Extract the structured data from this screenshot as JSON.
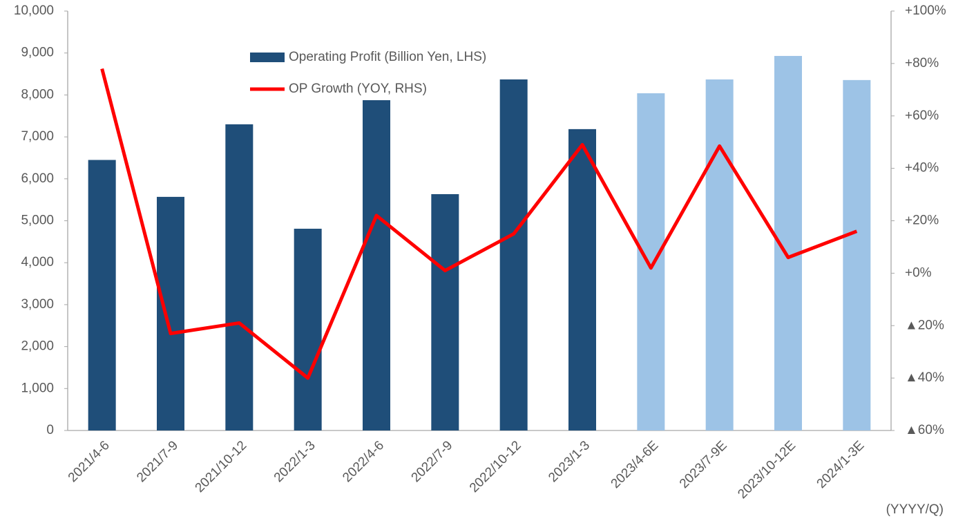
{
  "chart_data": {
    "type": "bar-line",
    "categories": [
      "2021/4-6",
      "2021/7-9",
      "2021/10-12",
      "2022/1-3",
      "2022/4-6",
      "2022/7-9",
      "2022/10-12",
      "2023/1-3",
      "2023/4-6E",
      "2023/7-9E",
      "2023/10-12E",
      "2024/1-3E"
    ],
    "series": [
      {
        "name": "Operating Profit (Billion Yen, LHS)",
        "type": "bar",
        "color": "#1f4e79",
        "colors": [
          "#1f4e79",
          "#1f4e79",
          "#1f4e79",
          "#1f4e79",
          "#1f4e79",
          "#1f4e79",
          "#1f4e79",
          "#1f4e79",
          "#9dc3e6",
          "#9dc3e6",
          "#9dc3e6",
          "#9dc3e6"
        ],
        "values": [
          6450,
          5570,
          7300,
          4810,
          7875,
          5635,
          8370,
          7185,
          8040,
          8370,
          8930,
          8355
        ]
      },
      {
        "name": "OP Growth (YOY, RHS)",
        "type": "line",
        "axis": "y2",
        "color": "#ff0000",
        "values": [
          78,
          -23,
          -19,
          -40,
          22,
          1,
          15,
          49,
          2,
          48.5,
          6,
          16
        ]
      }
    ],
    "ylim": [
      0,
      10000
    ],
    "yticks": [
      0,
      {
        "value": 1000,
        "label": "1,000"
      },
      {
        "value": 2000,
        "label": "2,000"
      },
      {
        "value": 3000,
        "label": "3,000"
      },
      {
        "value": 4000,
        "label": "4,000"
      },
      {
        "value": 5000,
        "label": "5,000"
      },
      {
        "value": 6000,
        "label": "6,000"
      },
      {
        "value": 7000,
        "label": "7,000"
      },
      {
        "value": 8000,
        "label": "8,000"
      },
      {
        "value": 9000,
        "label": "9,000"
      },
      {
        "value": 10000,
        "label": "10,000"
      }
    ],
    "y2lim": [
      -60,
      100
    ],
    "y2ticks": [
      {
        "value": -60,
        "label": "▲60%"
      },
      {
        "value": -40,
        "label": "▲40%"
      },
      {
        "value": -20,
        "label": "▲20%"
      },
      {
        "value": 0,
        "label": "+0%"
      },
      {
        "value": 20,
        "label": "+20%"
      },
      {
        "value": 40,
        "label": "+40%"
      },
      {
        "value": 60,
        "label": "+60%"
      },
      {
        "value": 80,
        "label": "+80%"
      },
      {
        "value": 100,
        "label": "+100%"
      }
    ],
    "x_unit": "(YYYY/Q)"
  }
}
